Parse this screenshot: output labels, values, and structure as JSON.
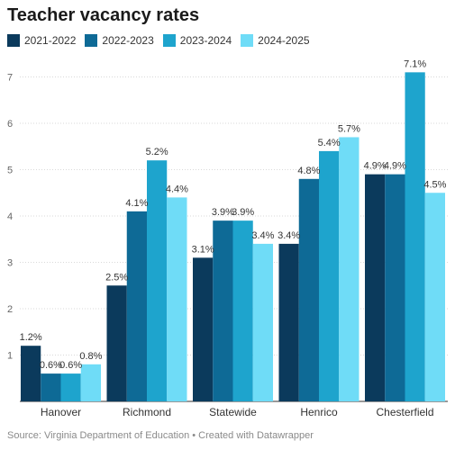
{
  "chart_data": {
    "type": "bar",
    "title": "Teacher vacancy rates",
    "categories": [
      "Hanover",
      "Richmond",
      "Statewide",
      "Henrico",
      "Chesterfield"
    ],
    "series": [
      {
        "name": "2021-2022",
        "color": "#0b3a5c",
        "values": [
          1.2,
          2.5,
          3.1,
          3.4,
          4.9
        ],
        "labels": [
          "1.2%",
          "2.5%",
          "3.1%",
          "3.4%",
          "4.9%"
        ]
      },
      {
        "name": "2022-2023",
        "color": "#0e6a96",
        "values": [
          0.6,
          4.1,
          3.9,
          4.8,
          4.9
        ],
        "labels": [
          "0.6%",
          "4.1%",
          "3.9%",
          "4.8%",
          "4.9%"
        ]
      },
      {
        "name": "2023-2024",
        "color": "#1ea4cd",
        "values": [
          0.6,
          5.2,
          3.9,
          5.4,
          7.1
        ],
        "labels": [
          "0.6%",
          "5.2%",
          "3.9%",
          "5.4%",
          "7.1%"
        ]
      },
      {
        "name": "2024-2025",
        "color": "#6fdcf7",
        "values": [
          0.8,
          4.4,
          3.4,
          5.7,
          4.5
        ],
        "labels": [
          "0.8%",
          "4.4%",
          "3.4%",
          "5.7%",
          "4.5%"
        ]
      }
    ],
    "yticks": [
      "1",
      "2",
      "3",
      "4",
      "5",
      "6",
      "7"
    ],
    "ylim": [
      0,
      7.4
    ],
    "grid": true,
    "legend_position": "top-left"
  },
  "footer": {
    "source": "Source: Virginia Department of Education • Created with Datawrapper"
  }
}
